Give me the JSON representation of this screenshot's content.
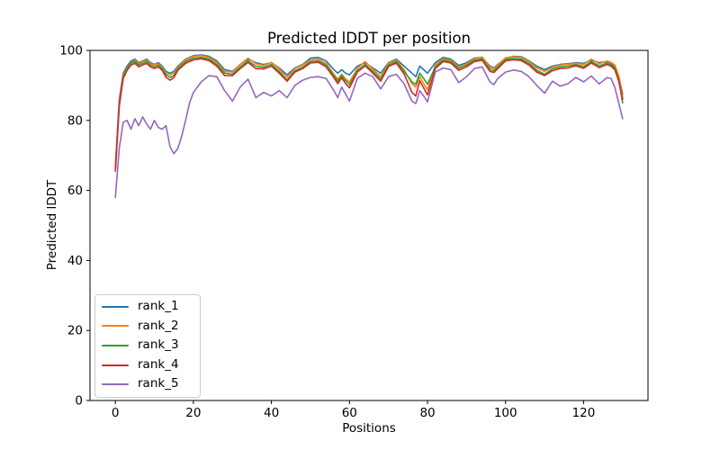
{
  "figure": {
    "background": "#ffffff"
  },
  "chart_data": {
    "type": "line",
    "title": "Predicted lDDT per position",
    "xlabel": "Positions",
    "ylabel": "Predicted lDDT",
    "xlim": [
      -6.5,
      136.5
    ],
    "ylim": [
      0,
      100
    ],
    "xticks": [
      0,
      20,
      40,
      60,
      80,
      100,
      120
    ],
    "yticks": [
      0,
      20,
      40,
      60,
      80,
      100
    ],
    "grid": false,
    "legend": {
      "loc": "lower left",
      "frame": true,
      "frame_color": "#cccccc"
    },
    "x": [
      0,
      1,
      2,
      3,
      4,
      5,
      6,
      7,
      8,
      9,
      10,
      11,
      12,
      13,
      14,
      15,
      16,
      17,
      18,
      19,
      20,
      22,
      24,
      26,
      28,
      30,
      32,
      34,
      36,
      38,
      40,
      42,
      44,
      46,
      48,
      50,
      52,
      54,
      56,
      57,
      58,
      59,
      60,
      62,
      64,
      66,
      68,
      70,
      72,
      74,
      76,
      77,
      78,
      79,
      80,
      82,
      84,
      86,
      88,
      90,
      92,
      94,
      96,
      97,
      98,
      100,
      102,
      104,
      106,
      108,
      110,
      112,
      114,
      116,
      118,
      120,
      122,
      124,
      126,
      127,
      128,
      129,
      130
    ],
    "series": [
      {
        "name": "rank_1",
        "color": "#1f77b4",
        "values": [
          67,
          86,
          93.5,
          95.5,
          97,
          97.5,
          96.5,
          97,
          97.5,
          96.5,
          96,
          96.5,
          95.5,
          94,
          93.5,
          94,
          95.5,
          96.5,
          97.5,
          98,
          98.5,
          98.7,
          98.3,
          97,
          94.5,
          94,
          96,
          97.5,
          96.5,
          96,
          96.5,
          95,
          93,
          95,
          96,
          97.8,
          98,
          97,
          94.5,
          93.5,
          94.5,
          93.5,
          93,
          95.5,
          96.5,
          95,
          93.5,
          96.5,
          97.5,
          95.5,
          93.5,
          92.5,
          95.5,
          94.5,
          93.5,
          96.5,
          98,
          97.5,
          95.7,
          96.5,
          97.8,
          98,
          95.5,
          95,
          96,
          97.8,
          98.3,
          98.2,
          97,
          95.5,
          94.5,
          95.5,
          96,
          96.2,
          96.5,
          96.3,
          97.2,
          96.5,
          96.8,
          96.5,
          95.5,
          92.5,
          87.5
        ]
      },
      {
        "name": "rank_2",
        "color": "#ff7f0e",
        "values": [
          66.5,
          85,
          93,
          95,
          96.5,
          97.2,
          96.2,
          96.8,
          97.2,
          96.2,
          95.8,
          96.2,
          95.2,
          93.5,
          93,
          93.5,
          95.2,
          96.3,
          97.3,
          97.8,
          98.3,
          98.5,
          98,
          96.5,
          94,
          93.8,
          96,
          97.8,
          96.2,
          95.7,
          96.6,
          94.7,
          92.3,
          94.8,
          95.8,
          97.3,
          97.5,
          96.3,
          93.2,
          91.8,
          93.2,
          91.8,
          91,
          94.8,
          96.8,
          94.6,
          92.5,
          96.3,
          97.2,
          94.5,
          90.5,
          89.5,
          92.5,
          90.5,
          88.8,
          95.8,
          97.6,
          97.2,
          95.2,
          96.2,
          97.6,
          98.1,
          95.2,
          94.8,
          95.8,
          97.9,
          98.2,
          98,
          96.8,
          95,
          94,
          95.2,
          95.8,
          96,
          96.4,
          96,
          97.5,
          96.2,
          97,
          96.6,
          95.8,
          92.8,
          86.5
        ]
      },
      {
        "name": "rank_3",
        "color": "#2ca02c",
        "values": [
          66,
          84.5,
          92.5,
          94.8,
          96.3,
          96.8,
          95.8,
          96.3,
          96.8,
          95.8,
          95.3,
          95.8,
          94.8,
          93,
          92.3,
          92.8,
          94.8,
          95.8,
          96.8,
          97.3,
          97.8,
          98,
          97.5,
          96,
          93.5,
          93.2,
          95.3,
          97,
          95.5,
          95.2,
          96,
          94,
          91.5,
          94.2,
          95.2,
          96.8,
          97,
          95.8,
          92.8,
          91.2,
          92.8,
          91.3,
          90.2,
          94.2,
          96,
          94,
          91.8,
          95.8,
          96.8,
          94,
          91,
          90.3,
          93.5,
          92,
          90.3,
          95.3,
          97.2,
          96.8,
          94.8,
          95.8,
          97.2,
          97.6,
          94.6,
          94.2,
          95.3,
          97.4,
          97.7,
          97.5,
          96.3,
          94.3,
          93.2,
          94.7,
          95.3,
          95.5,
          96,
          95.4,
          96.8,
          95.6,
          96.4,
          96,
          95,
          91.8,
          85
        ]
      },
      {
        "name": "rank_4",
        "color": "#d62728",
        "values": [
          65.5,
          84,
          92,
          94.3,
          95.8,
          96.3,
          95.3,
          95.8,
          96.3,
          95.3,
          94.8,
          95.3,
          94.3,
          92.3,
          91.5,
          92.2,
          94.3,
          95.3,
          96.3,
          96.8,
          97.3,
          97.6,
          97.1,
          95.5,
          92.8,
          92.8,
          94.8,
          96.6,
          94.8,
          94.7,
          95.5,
          93.5,
          91.2,
          93.8,
          94.8,
          96.4,
          96.6,
          95.3,
          92.2,
          90.5,
          92.2,
          90.5,
          89.3,
          93.8,
          95.6,
          93.5,
          91.2,
          95.4,
          96.4,
          93.3,
          88,
          87,
          91.3,
          89.3,
          87.3,
          94.8,
          96.8,
          96.4,
          94.3,
          95.3,
          96.8,
          97.2,
          94,
          93.7,
          94.8,
          97,
          97.3,
          97.1,
          95.8,
          93.8,
          92.8,
          94.2,
          94.8,
          95,
          95.6,
          94.9,
          96.4,
          95.1,
          96,
          95.5,
          94.5,
          91.2,
          86
        ]
      },
      {
        "name": "rank_5",
        "color": "#9467bd",
        "values": [
          58,
          72,
          79.5,
          80,
          77.5,
          80.5,
          78.5,
          81,
          79,
          77.5,
          80,
          78,
          77.5,
          78.5,
          72.5,
          70.5,
          72,
          75.5,
          80,
          85,
          88,
          91,
          92.8,
          92.5,
          88.5,
          85.5,
          89.5,
          91.8,
          86.5,
          88,
          87,
          88.5,
          86.5,
          90,
          91.5,
          92.3,
          92.5,
          92,
          88.5,
          86.5,
          89.5,
          87.5,
          85.5,
          92,
          93.5,
          92.5,
          89,
          92.5,
          93.2,
          90.5,
          85.5,
          84.8,
          88.5,
          87,
          85.3,
          93.8,
          95,
          94.5,
          90.8,
          92.5,
          94.8,
          95.3,
          91,
          90.2,
          92,
          93.8,
          94.4,
          94,
          92.5,
          90,
          87.8,
          91.2,
          89.8,
          90.5,
          92.3,
          91,
          92.7,
          90.4,
          92.2,
          92,
          89.5,
          85,
          80.5
        ]
      }
    ]
  }
}
